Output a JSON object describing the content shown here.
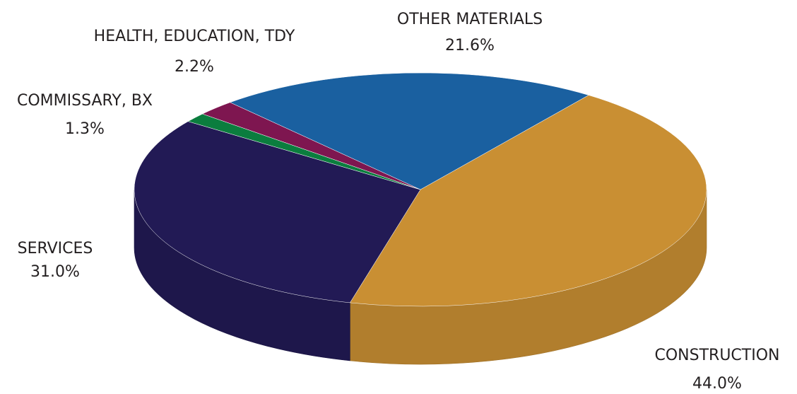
{
  "chart_data": {
    "type": "pie",
    "categories": [
      "CONSTRUCTION",
      "SERVICES",
      "COMMISSARY, BX",
      "HEALTH, EDUCATION, TDY",
      "OTHER MATERIALS"
    ],
    "values": [
      44.0,
      31.0,
      1.3,
      2.2,
      21.6
    ],
    "value_labels": [
      "44.0%",
      "31.0%",
      "1.3%",
      "2.2%",
      "21.6%"
    ],
    "colors": [
      "#c98f33",
      "#221a55",
      "#0b7d3e",
      "#7e1650",
      "#1a60a0"
    ]
  }
}
